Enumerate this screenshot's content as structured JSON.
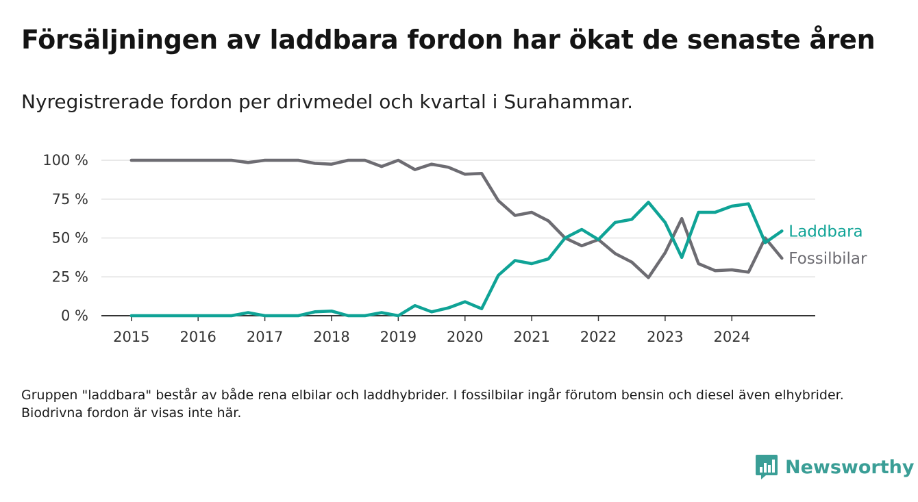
{
  "title": "Försäljningen av laddbara fordon har ökat de senaste åren",
  "subtitle": "Nyregistrerade fordon per drivmedel och kvartal i Surahammar.",
  "note": "Gruppen \"laddbara\" består av både rena elbilar och laddhybrider. I fossilbilar ingår förutom bensin och diesel även elhybrider. Biodrivna fordon är visas inte här.",
  "brand": {
    "name": "Newsworthy",
    "icon": "bar-chart-bubble-icon",
    "color": "#3a9e96"
  },
  "chart_data": {
    "type": "line",
    "x_start": 2015.0,
    "x_step": 0.25,
    "xlim": [
      2014.55,
      2025.25
    ],
    "ylim": [
      0,
      100
    ],
    "x_ticks": [
      2015,
      2016,
      2017,
      2018,
      2019,
      2020,
      2021,
      2022,
      2023,
      2024
    ],
    "x_tick_labels": [
      "2015",
      "2016",
      "2017",
      "2018",
      "2019",
      "2020",
      "2021",
      "2022",
      "2023",
      "2024"
    ],
    "y_ticks": [
      0,
      25,
      50,
      75,
      100
    ],
    "y_tick_labels": [
      "0 %",
      "25 %",
      "50 %",
      "75 %",
      "100 %"
    ],
    "grid": true,
    "legend": "end-of-line labels",
    "series": [
      {
        "name": "Laddbara",
        "color": "#0fa396",
        "values": [
          0,
          0,
          0,
          0,
          0,
          0,
          0,
          2,
          0,
          0,
          0,
          2.5,
          3,
          0,
          0,
          2,
          0,
          6.5,
          2.5,
          5,
          9,
          4.5,
          26,
          35.5,
          33.5,
          36.5,
          50,
          55.5,
          49,
          60,
          62,
          73,
          60,
          37.5,
          66.5,
          66.5,
          70.5,
          72,
          47,
          54.5
        ]
      },
      {
        "name": "Fossilbilar",
        "color": "#6d6c72",
        "values": [
          100,
          100,
          100,
          100,
          100,
          100,
          100,
          98.5,
          100,
          100,
          100,
          98,
          97.5,
          100,
          100,
          96,
          100,
          94,
          97.5,
          95.5,
          91,
          91.5,
          74,
          64.5,
          66.5,
          61,
          50,
          45,
          49,
          40,
          34.5,
          24.5,
          40.5,
          62.5,
          33.5,
          29,
          29.5,
          28,
          50,
          37
        ]
      }
    ]
  }
}
